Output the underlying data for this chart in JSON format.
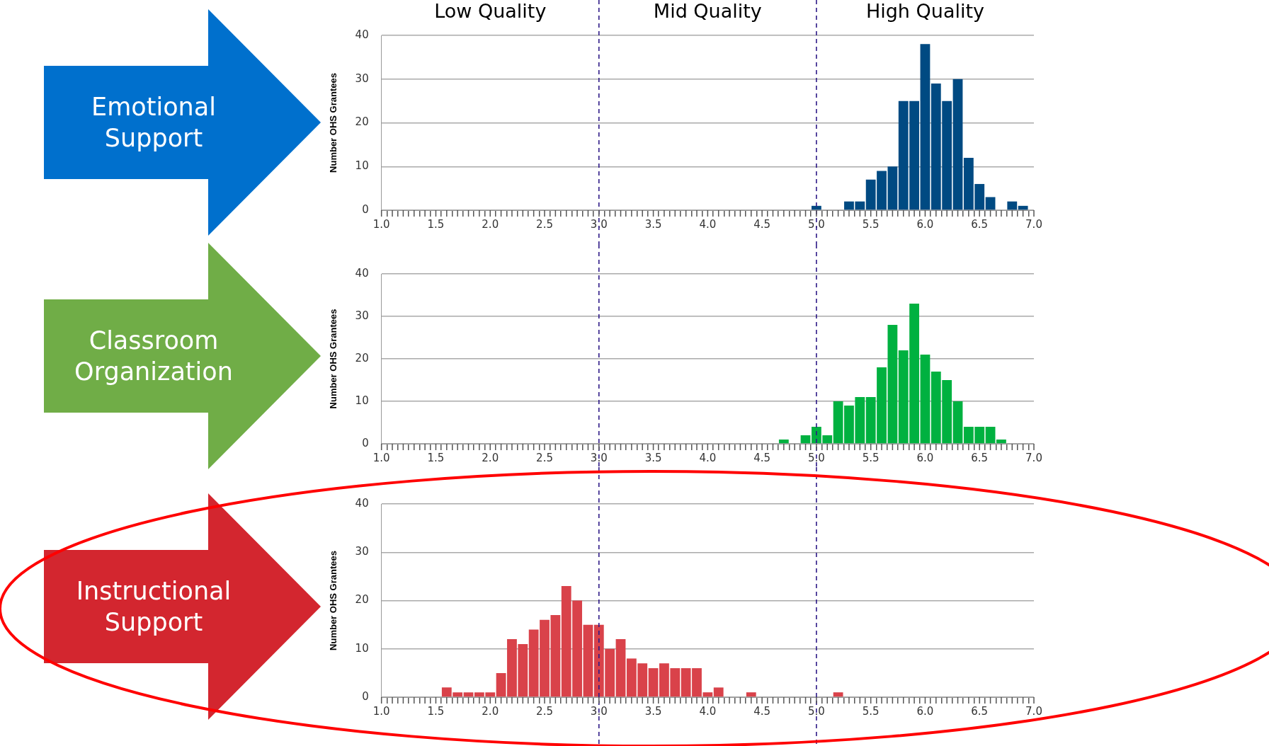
{
  "chart_data": [
    {
      "type": "histogram",
      "title": "Emotional Support",
      "ylabel": "Number OHS Grantees",
      "annotations": [
        "Low Quality",
        "Mid Quality",
        "High Quality"
      ],
      "color": "#004a82",
      "bins": [
        4.95,
        5.05,
        5.15,
        5.25,
        5.35,
        5.45,
        5.55,
        5.65,
        5.75,
        5.85,
        5.95,
        6.05,
        6.15,
        6.25,
        6.35,
        6.45,
        6.55,
        6.65,
        6.75,
        6.85,
        6.95
      ],
      "values": [
        1,
        0,
        0,
        2,
        2,
        7,
        9,
        10,
        25,
        25,
        38,
        29,
        25,
        30,
        12,
        6,
        3,
        0,
        2,
        1
      ],
      "xlim": [
        1,
        7
      ],
      "ylim": [
        0,
        40
      ],
      "yticks": [
        0,
        10,
        20,
        30,
        40
      ],
      "grid": "y",
      "xticks": [
        {
          "value": 1,
          "label": "1.0"
        },
        {
          "value": 1.1,
          "label": null
        },
        {
          "value": 1.2,
          "label": null
        },
        {
          "value": 1.3,
          "label": null
        },
        {
          "value": 1.4,
          "label": null
        },
        1.5,
        {
          "value": 1.6,
          "label": null
        },
        {
          "value": 1.7,
          "label": null
        },
        {
          "value": 1.8,
          "label": null
        },
        {
          "value": 1.9,
          "label": null
        },
        {
          "value": 2,
          "label": "2.0"
        },
        {
          "value": 2.1,
          "label": null
        },
        {
          "value": 2.2,
          "label": null
        },
        {
          "value": 2.3,
          "label": null
        },
        {
          "value": 2.4,
          "label": null
        },
        2.5,
        {
          "value": 2.6,
          "label": null
        },
        {
          "value": 2.7,
          "label": null
        },
        {
          "value": 2.8,
          "label": null
        },
        {
          "value": 2.9,
          "label": null
        },
        {
          "value": 3,
          "label": "3.0"
        },
        {
          "value": 3.1,
          "label": null
        },
        {
          "value": 3.2,
          "label": null
        },
        {
          "value": 3.3,
          "label": null
        },
        {
          "value": 3.4,
          "label": null
        },
        3.5,
        {
          "value": 3.6,
          "label": null
        },
        {
          "value": 3.7,
          "label": null
        },
        {
          "value": 3.8,
          "label": null
        },
        {
          "value": 3.9,
          "label": null
        },
        {
          "value": 4,
          "label": "4.0"
        },
        {
          "value": 4.1,
          "label": null
        },
        {
          "value": 4.2,
          "label": null
        },
        {
          "value": 4.3,
          "label": null
        },
        {
          "value": 4.4,
          "label": null
        },
        4.5,
        {
          "value": 4.6,
          "label": null
        },
        {
          "value": 4.7,
          "label": null
        },
        {
          "value": 4.8,
          "label": null
        },
        {
          "value": 4.9,
          "label": null
        },
        {
          "value": 5,
          "label": "5.0"
        },
        {
          "value": 5.1,
          "label": null
        },
        {
          "value": 5.2,
          "label": null
        },
        {
          "value": 5.3,
          "label": null
        },
        {
          "value": 5.4,
          "label": null
        },
        5.5,
        {
          "value": 5.6,
          "label": null
        },
        {
          "value": 5.7,
          "label": null
        },
        {
          "value": 5.8,
          "label": null
        },
        {
          "value": 5.9,
          "label": null
        },
        {
          "value": 6,
          "label": "6.0"
        },
        {
          "value": 6.1,
          "label": null
        },
        {
          "value": 6.2,
          "label": null
        },
        {
          "value": 6.3,
          "label": null
        },
        {
          "value": 6.4,
          "label": null
        },
        6.5,
        {
          "value": 6.6,
          "label": null
        },
        {
          "value": 6.7,
          "label": null
        },
        {
          "value": 6.8,
          "label": null
        },
        {
          "value": 6.9,
          "label": null
        },
        {
          "value": 7,
          "label": "7.0"
        }
      ],
      "ref_lines": [
        {
          "axis": "x",
          "value": 3,
          "color": "#2e1a87",
          "line_style": "dashed"
        },
        {
          "axis": "x",
          "value": 5,
          "color": "#2e1a87",
          "line_style": "dashed"
        }
      ]
    },
    {
      "type": "histogram",
      "title": "Classroom Organization",
      "ylabel": "Number OHS Grantees",
      "color": "#00b140",
      "bins": [
        4.65,
        4.75,
        4.85,
        4.95,
        5.05,
        5.15,
        5.25,
        5.35,
        5.45,
        5.55,
        5.65,
        5.75,
        5.85,
        5.95,
        6.05,
        6.15,
        6.25,
        6.35,
        6.45,
        6.55,
        6.65,
        6.75
      ],
      "values": [
        1,
        0,
        2,
        4,
        2,
        10,
        9,
        11,
        11,
        18,
        28,
        22,
        33,
        21,
        17,
        15,
        10,
        4,
        4,
        4,
        1
      ],
      "xlim": [
        1,
        7
      ],
      "ylim": [
        0,
        40
      ],
      "yticks": [
        0,
        10,
        20,
        30,
        40
      ],
      "grid": "y",
      "xticks": [
        {
          "value": 1,
          "label": "1.0"
        },
        {
          "value": 1.1,
          "label": null
        },
        {
          "value": 1.2,
          "label": null
        },
        {
          "value": 1.3,
          "label": null
        },
        {
          "value": 1.4,
          "label": null
        },
        1.5,
        {
          "value": 1.6,
          "label": null
        },
        {
          "value": 1.7,
          "label": null
        },
        {
          "value": 1.8,
          "label": null
        },
        {
          "value": 1.9,
          "label": null
        },
        {
          "value": 2,
          "label": "2.0"
        },
        {
          "value": 2.1,
          "label": null
        },
        {
          "value": 2.2,
          "label": null
        },
        {
          "value": 2.3,
          "label": null
        },
        {
          "value": 2.4,
          "label": null
        },
        2.5,
        {
          "value": 2.6,
          "label": null
        },
        {
          "value": 2.7,
          "label": null
        },
        {
          "value": 2.8,
          "label": null
        },
        {
          "value": 2.9,
          "label": null
        },
        {
          "value": 3,
          "label": "3.0"
        },
        {
          "value": 3.1,
          "label": null
        },
        {
          "value": 3.2,
          "label": null
        },
        {
          "value": 3.3,
          "label": null
        },
        {
          "value": 3.4,
          "label": null
        },
        3.5,
        {
          "value": 3.6,
          "label": null
        },
        {
          "value": 3.7,
          "label": null
        },
        {
          "value": 3.8,
          "label": null
        },
        {
          "value": 3.9,
          "label": null
        },
        {
          "value": 4,
          "label": "4.0"
        },
        {
          "value": 4.1,
          "label": null
        },
        {
          "value": 4.2,
          "label": null
        },
        {
          "value": 4.3,
          "label": null
        },
        {
          "value": 4.4,
          "label": null
        },
        4.5,
        {
          "value": 4.6,
          "label": null
        },
        {
          "value": 4.7,
          "label": null
        },
        {
          "value": 4.8,
          "label": null
        },
        {
          "value": 4.9,
          "label": null
        },
        {
          "value": 5,
          "label": "5.0"
        },
        {
          "value": 5.1,
          "label": null
        },
        {
          "value": 5.2,
          "label": null
        },
        {
          "value": 5.3,
          "label": null
        },
        {
          "value": 5.4,
          "label": null
        },
        5.5,
        {
          "value": 5.6,
          "label": null
        },
        {
          "value": 5.7,
          "label": null
        },
        {
          "value": 5.8,
          "label": null
        },
        {
          "value": 5.9,
          "label": null
        },
        {
          "value": 6,
          "label": "6.0"
        },
        {
          "value": 6.1,
          "label": null
        },
        {
          "value": 6.2,
          "label": null
        },
        {
          "value": 6.3,
          "label": null
        },
        {
          "value": 6.4,
          "label": null
        },
        6.5,
        {
          "value": 6.6,
          "label": null
        },
        {
          "value": 6.7,
          "label": null
        },
        {
          "value": 6.8,
          "label": null
        },
        {
          "value": 6.9,
          "label": null
        },
        {
          "value": 7,
          "label": "7.0"
        }
      ],
      "ref_lines": [
        {
          "axis": "x",
          "value": 3,
          "color": "#2e1a87",
          "line_style": "dashed"
        },
        {
          "axis": "x",
          "value": 5,
          "color": "#2e1a87",
          "line_style": "dashed"
        }
      ]
    },
    {
      "type": "histogram",
      "title": "Instructional Support",
      "ylabel": "Number OHS Grantees",
      "color": "#d9424a",
      "bins": [
        1.55,
        1.65,
        1.75,
        1.85,
        1.95,
        2.05,
        2.15,
        2.25,
        2.35,
        2.45,
        2.55,
        2.65,
        2.75,
        2.85,
        2.95,
        3.05,
        3.15,
        3.25,
        3.35,
        3.45,
        3.55,
        3.65,
        3.75,
        3.85,
        3.95,
        4.05,
        4.15,
        4.25,
        4.35,
        4.45,
        4.55,
        4.65,
        4.75,
        4.85,
        4.95,
        5.05,
        5.15,
        5.25
      ],
      "values": [
        2,
        1,
        1,
        1,
        1,
        5,
        12,
        11,
        14,
        16,
        17,
        23,
        20,
        15,
        15,
        10,
        12,
        8,
        7,
        6,
        7,
        6,
        6,
        6,
        1,
        2,
        0,
        0,
        1,
        0,
        0,
        0,
        0,
        0,
        0,
        0,
        1
      ],
      "xlim": [
        1,
        7
      ],
      "ylim": [
        0,
        40
      ],
      "yticks": [
        0,
        10,
        20,
        30,
        40
      ],
      "grid": "y",
      "xticks": [
        {
          "value": 1,
          "label": "1.0"
        },
        {
          "value": 1.1,
          "label": null
        },
        {
          "value": 1.2,
          "label": null
        },
        {
          "value": 1.3,
          "label": null
        },
        {
          "value": 1.4,
          "label": null
        },
        1.5,
        {
          "value": 1.6,
          "label": null
        },
        {
          "value": 1.7,
          "label": null
        },
        {
          "value": 1.8,
          "label": null
        },
        {
          "value": 1.9,
          "label": null
        },
        {
          "value": 2,
          "label": "2.0"
        },
        {
          "value": 2.1,
          "label": null
        },
        {
          "value": 2.2,
          "label": null
        },
        {
          "value": 2.3,
          "label": null
        },
        {
          "value": 2.4,
          "label": null
        },
        2.5,
        {
          "value": 2.6,
          "label": null
        },
        {
          "value": 2.7,
          "label": null
        },
        {
          "value": 2.8,
          "label": null
        },
        {
          "value": 2.9,
          "label": null
        },
        {
          "value": 3,
          "label": "3.0"
        },
        {
          "value": 3.1,
          "label": null
        },
        {
          "value": 3.2,
          "label": null
        },
        {
          "value": 3.3,
          "label": null
        },
        {
          "value": 3.4,
          "label": null
        },
        3.5,
        {
          "value": 3.6,
          "label": null
        },
        {
          "value": 3.7,
          "label": null
        },
        {
          "value": 3.8,
          "label": null
        },
        {
          "value": 3.9,
          "label": null
        },
        {
          "value": 4,
          "label": "4.0"
        },
        {
          "value": 4.1,
          "label": null
        },
        {
          "value": 4.2,
          "label": null
        },
        {
          "value": 4.3,
          "label": null
        },
        {
          "value": 4.4,
          "label": null
        },
        4.5,
        {
          "value": 4.6,
          "label": null
        },
        {
          "value": 4.7,
          "label": null
        },
        {
          "value": 4.8,
          "label": null
        },
        {
          "value": 4.9,
          "label": null
        },
        {
          "value": 5,
          "label": "5.0"
        },
        {
          "value": 5.1,
          "label": null
        },
        {
          "value": 5.2,
          "label": null
        },
        {
          "value": 5.3,
          "label": null
        },
        {
          "value": 5.4,
          "label": null
        },
        5.5,
        {
          "value": 5.6,
          "label": null
        },
        {
          "value": 5.7,
          "label": null
        },
        {
          "value": 5.8,
          "label": null
        },
        {
          "value": 5.9,
          "label": null
        },
        {
          "value": 6,
          "label": "6.0"
        },
        {
          "value": 6.1,
          "label": null
        },
        {
          "value": 6.2,
          "label": null
        },
        {
          "value": 6.3,
          "label": null
        },
        {
          "value": 6.4,
          "label": null
        },
        6.5,
        {
          "value": 6.6,
          "label": null
        },
        {
          "value": 6.7,
          "label": null
        },
        {
          "value": 6.8,
          "label": null
        },
        {
          "value": 6.9,
          "label": null
        },
        {
          "value": 7,
          "label": "7.0"
        }
      ],
      "ref_lines": [
        {
          "axis": "x",
          "value": 3,
          "color": "#2e1a87",
          "line_style": "dashed"
        },
        {
          "axis": "x",
          "value": 5,
          "color": "#2e1a87",
          "line_style": "dashed"
        }
      ]
    }
  ]
}
